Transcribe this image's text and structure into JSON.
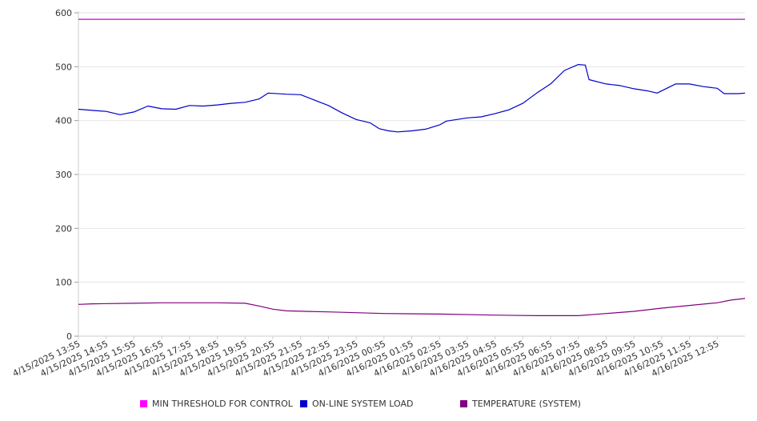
{
  "chart_data": {
    "type": "line",
    "title": "",
    "xlabel": "",
    "ylabel": "",
    "ylim": [
      0,
      600
    ],
    "yticks": [
      0,
      100,
      200,
      300,
      400,
      500,
      600
    ],
    "xlim": [
      "4/15/2025 13:55",
      "4/16/2025 13:55"
    ],
    "x_tick_labels": [
      "4/15/2025 13:55",
      "4/15/2025 14:55",
      "4/15/2025 15:55",
      "4/15/2025 16:55",
      "4/15/2025 17:55",
      "4/15/2025 18:55",
      "4/15/2025 19:55",
      "4/15/2025 20:55",
      "4/15/2025 21:55",
      "4/15/2025 22:55",
      "4/15/2025 23:55",
      "4/16/2025 00:55",
      "4/16/2025 01:55",
      "4/16/2025 02:55",
      "4/16/2025 03:55",
      "4/16/2025 04:55",
      "4/16/2025 05:55",
      "4/16/2025 06:55",
      "4/16/2025 07:55",
      "4/16/2025 08:55",
      "4/16/2025 09:55",
      "4/16/2025 10:55",
      "4/16/2025 11:55",
      "4/16/2025 12:55"
    ],
    "grid": true,
    "legend_position": "bottom",
    "series": [
      {
        "name": "MIN THRESHOLD FOR CONTROL",
        "color": "#cc00cc",
        "points": [
          [
            "4/15/2025 13:55",
            588
          ],
          [
            "4/16/2025 13:55",
            588
          ]
        ]
      },
      {
        "name": "ON-LINE SYSTEM LOAD",
        "color": "#0000cc",
        "points": [
          [
            "4/15/2025 13:55",
            421
          ],
          [
            "4/15/2025 14:25",
            419
          ],
          [
            "4/15/2025 14:55",
            417
          ],
          [
            "4/15/2025 15:25",
            411
          ],
          [
            "4/15/2025 15:55",
            416
          ],
          [
            "4/15/2025 16:25",
            427
          ],
          [
            "4/15/2025 16:55",
            422
          ],
          [
            "4/15/2025 17:25",
            421
          ],
          [
            "4/15/2025 17:55",
            428
          ],
          [
            "4/15/2025 18:25",
            427
          ],
          [
            "4/15/2025 18:55",
            429
          ],
          [
            "4/15/2025 19:25",
            432
          ],
          [
            "4/15/2025 19:55",
            434
          ],
          [
            "4/15/2025 20:25",
            440
          ],
          [
            "4/15/2025 20:45",
            451
          ],
          [
            "4/15/2025 21:25",
            449
          ],
          [
            "4/15/2025 21:55",
            448
          ],
          [
            "4/15/2025 22:25",
            438
          ],
          [
            "4/15/2025 22:55",
            428
          ],
          [
            "4/15/2025 23:25",
            414
          ],
          [
            "4/15/2025 23:55",
            402
          ],
          [
            "4/16/2025 00:25",
            396
          ],
          [
            "4/16/2025 00:45",
            385
          ],
          [
            "4/16/2025 01:05",
            381
          ],
          [
            "4/16/2025 01:25",
            379
          ],
          [
            "4/16/2025 01:55",
            381
          ],
          [
            "4/16/2025 02:25",
            384
          ],
          [
            "4/16/2025 02:55",
            392
          ],
          [
            "4/16/2025 03:10",
            399
          ],
          [
            "4/16/2025 03:55",
            405
          ],
          [
            "4/16/2025 04:25",
            407
          ],
          [
            "4/16/2025 04:55",
            413
          ],
          [
            "4/16/2025 05:25",
            420
          ],
          [
            "4/16/2025 05:55",
            432
          ],
          [
            "4/16/2025 06:25",
            451
          ],
          [
            "4/16/2025 06:55",
            468
          ],
          [
            "4/16/2025 07:25",
            493
          ],
          [
            "4/16/2025 07:55",
            504
          ],
          [
            "4/16/2025 08:10",
            503
          ],
          [
            "4/16/2025 08:18",
            476
          ],
          [
            "4/16/2025 08:55",
            468
          ],
          [
            "4/16/2025 09:25",
            465
          ],
          [
            "4/16/2025 09:55",
            459
          ],
          [
            "4/16/2025 10:25",
            455
          ],
          [
            "4/16/2025 10:45",
            451
          ],
          [
            "4/16/2025 11:25",
            468
          ],
          [
            "4/16/2025 11:55",
            468
          ],
          [
            "4/16/2025 12:25",
            463
          ],
          [
            "4/16/2025 12:55",
            460
          ],
          [
            "4/16/2025 13:10",
            450
          ],
          [
            "4/16/2025 13:40",
            450
          ],
          [
            "4/16/2025 13:55",
            451
          ]
        ]
      },
      {
        "name": "TEMPERATURE (SYSTEM)",
        "color": "#800080",
        "points": [
          [
            "4/15/2025 13:55",
            59
          ],
          [
            "4/15/2025 14:25",
            60
          ],
          [
            "4/15/2025 15:55",
            61
          ],
          [
            "4/15/2025 16:55",
            62
          ],
          [
            "4/15/2025 18:55",
            62
          ],
          [
            "4/15/2025 19:55",
            61
          ],
          [
            "4/15/2025 20:25",
            56
          ],
          [
            "4/15/2025 20:55",
            50
          ],
          [
            "4/15/2025 21:25",
            47
          ],
          [
            "4/15/2025 22:55",
            45
          ],
          [
            "4/16/2025 00:55",
            42
          ],
          [
            "4/16/2025 02:55",
            41
          ],
          [
            "4/16/2025 04:55",
            39
          ],
          [
            "4/16/2025 06:25",
            38
          ],
          [
            "4/16/2025 07:55",
            38
          ],
          [
            "4/16/2025 08:55",
            42
          ],
          [
            "4/16/2025 09:55",
            46
          ],
          [
            "4/16/2025 10:55",
            52
          ],
          [
            "4/16/2025 11:55",
            57
          ],
          [
            "4/16/2025 12:55",
            62
          ],
          [
            "4/16/2025 13:25",
            67
          ],
          [
            "4/16/2025 13:55",
            70
          ]
        ]
      }
    ]
  },
  "legend": {
    "items": [
      {
        "label": "MIN THRESHOLD FOR CONTROL",
        "color": "#ff00ff"
      },
      {
        "label": "ON-LINE SYSTEM LOAD",
        "color": "#0000cc"
      },
      {
        "label": "TEMPERATURE (SYSTEM)",
        "color": "#800080"
      }
    ]
  }
}
